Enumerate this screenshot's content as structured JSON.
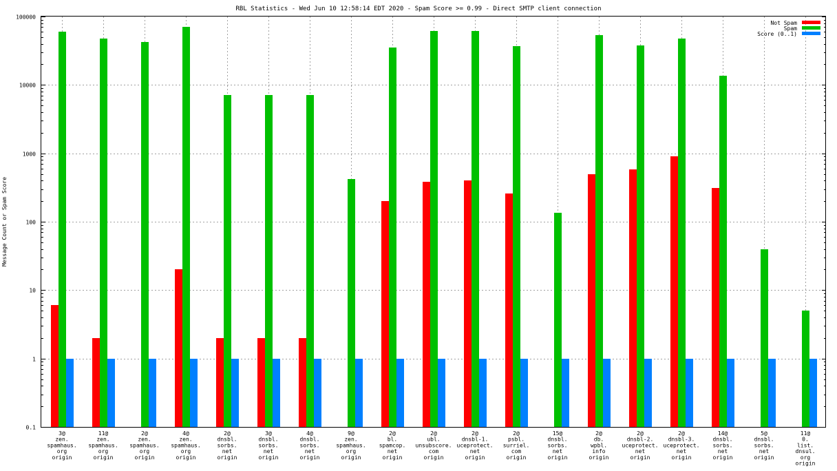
{
  "chart_data": {
    "type": "bar",
    "title": "RBL Statistics - Wed Jun 10 12:58:14 EDT 2020 - Spam Score >= 0.99 - Direct SMTP client connection",
    "xlabel": "",
    "ylabel": "Message Count or Spam Score",
    "yscale": "log",
    "ylim": [
      0.1,
      100000
    ],
    "yticks": [
      "0.1",
      "1",
      "10",
      "100",
      "1000",
      "10000",
      "100000"
    ],
    "grid": true,
    "legend_position": "top-right",
    "categories": [
      [
        "3@",
        "zen.",
        "spamhaus.",
        "org",
        "origin"
      ],
      [
        "11@",
        "zen.",
        "spamhaus.",
        "org",
        "origin"
      ],
      [
        "2@",
        "zen.",
        "spamhaus.",
        "org",
        "origin"
      ],
      [
        "4@",
        "zen.",
        "spamhaus.",
        "org",
        "origin"
      ],
      [
        "2@",
        "dnsbl.",
        "sorbs.",
        "net",
        "origin"
      ],
      [
        "3@",
        "dnsbl.",
        "sorbs.",
        "net",
        "origin"
      ],
      [
        "4@",
        "dnsbl.",
        "sorbs.",
        "net",
        "origin"
      ],
      [
        "9@",
        "zen.",
        "spamhaus.",
        "org",
        "origin"
      ],
      [
        "2@",
        "bl.",
        "spamcop.",
        "net",
        "origin"
      ],
      [
        "2@",
        "ubl.",
        "unsubscore.",
        "com",
        "origin"
      ],
      [
        "2@",
        "dnsbl-1.",
        "uceprotect.",
        "net",
        "origin"
      ],
      [
        "2@",
        "psbl.",
        "surriel.",
        "com",
        "origin"
      ],
      [
        "15@",
        "dnsbl.",
        "sorbs.",
        "net",
        "origin"
      ],
      [
        "2@",
        "db.",
        "wpbl.",
        "info",
        "origin"
      ],
      [
        "2@",
        "dnsbl-2.",
        "uceprotect.",
        "net",
        "origin"
      ],
      [
        "2@",
        "dnsbl-3.",
        "uceprotect.",
        "net",
        "origin"
      ],
      [
        "14@",
        "dnsbl.",
        "sorbs.",
        "net",
        "origin"
      ],
      [
        "5@",
        "dnsbl.",
        "sorbs.",
        "net",
        "origin"
      ],
      [
        "11@",
        "0.",
        "list.",
        "dnsul.",
        "org",
        "origin"
      ]
    ],
    "series": [
      {
        "name": "Not Spam",
        "color": "#ff0000",
        "values": [
          6,
          2,
          null,
          20,
          2,
          2,
          2,
          null,
          200,
          380,
          400,
          260,
          null,
          500,
          580,
          900,
          310,
          null,
          null
        ]
      },
      {
        "name": "Spam",
        "color": "#00c000",
        "values": [
          60000,
          48000,
          42000,
          70000,
          7200,
          7200,
          7200,
          420,
          35000,
          62000,
          62000,
          37000,
          135,
          53000,
          38000,
          48000,
          13500,
          40,
          5
        ]
      },
      {
        "name": "Score (0..1)",
        "color": "#0080ff",
        "values": [
          1,
          1,
          1,
          1,
          1,
          1,
          1,
          1,
          1,
          1,
          1,
          1,
          1,
          1,
          1,
          1,
          1,
          1,
          1
        ]
      }
    ]
  }
}
